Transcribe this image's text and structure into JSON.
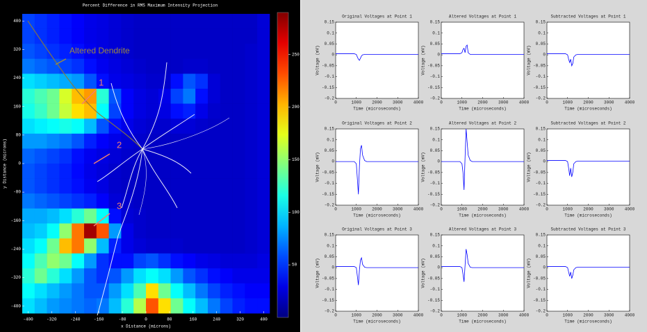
{
  "chart_data": [
    {
      "type": "heatmap",
      "title": "Percent Difference in RMS Maximum Intensity Projection",
      "xlabel": "x Distance (microns)",
      "ylabel": "y Distance (microns)",
      "xlim": [
        -420,
        420
      ],
      "ylim": [
        -420,
        420
      ],
      "xticks": [
        -400,
        -320,
        -240,
        -160,
        -80,
        0,
        80,
        160,
        240,
        320,
        400
      ],
      "yticks": [
        -400,
        -320,
        -240,
        -160,
        -80,
        0,
        80,
        160,
        240,
        320,
        400
      ],
      "colormap": "jet",
      "clim": [
        0,
        290
      ],
      "colorbar_ticks": [
        50,
        100,
        150,
        200,
        250
      ],
      "annotations": [
        "Altered Dendrite",
        "1",
        "2",
        "3"
      ],
      "x": [
        -399,
        -357,
        -315,
        -273,
        -231,
        -189,
        -147,
        -105,
        -63,
        -21,
        21,
        63,
        105,
        147,
        189,
        231,
        273,
        315,
        357,
        399
      ],
      "y": [
        399,
        357,
        315,
        273,
        231,
        189,
        147,
        105,
        63,
        21,
        -21,
        -63,
        -105,
        -147,
        -189,
        -231,
        -273,
        -315,
        -357,
        -399
      ],
      "values": [
        [
          55,
          50,
          45,
          40,
          35,
          30,
          28,
          25,
          22,
          20,
          20,
          20,
          20,
          20,
          20,
          20,
          20,
          20,
          20,
          25
        ],
        [
          55,
          50,
          45,
          40,
          35,
          30,
          28,
          25,
          22,
          20,
          20,
          20,
          20,
          20,
          20,
          20,
          20,
          20,
          20,
          25
        ],
        [
          60,
          55,
          50,
          45,
          40,
          32,
          28,
          25,
          22,
          20,
          20,
          20,
          20,
          20,
          20,
          20,
          20,
          20,
          22,
          25
        ],
        [
          70,
          65,
          60,
          55,
          50,
          40,
          32,
          28,
          25,
          22,
          20,
          20,
          20,
          22,
          22,
          20,
          20,
          20,
          22,
          25
        ],
        [
          100,
          95,
          90,
          85,
          80,
          60,
          40,
          30,
          28,
          25,
          22,
          22,
          40,
          60,
          50,
          25,
          20,
          20,
          22,
          25
        ],
        [
          120,
          130,
          140,
          170,
          200,
          210,
          120,
          60,
          35,
          28,
          25,
          30,
          55,
          70,
          40,
          25,
          20,
          20,
          22,
          25
        ],
        [
          115,
          125,
          140,
          165,
          190,
          200,
          110,
          55,
          35,
          28,
          25,
          28,
          40,
          45,
          30,
          22,
          20,
          20,
          22,
          25
        ],
        [
          100,
          105,
          110,
          115,
          110,
          90,
          60,
          40,
          30,
          25,
          22,
          22,
          25,
          25,
          22,
          20,
          20,
          20,
          22,
          25
        ],
        [
          80,
          80,
          75,
          70,
          60,
          45,
          35,
          30,
          25,
          22,
          20,
          20,
          20,
          20,
          20,
          20,
          20,
          20,
          22,
          25
        ],
        [
          65,
          60,
          55,
          50,
          40,
          32,
          28,
          25,
          22,
          20,
          20,
          20,
          20,
          20,
          20,
          20,
          20,
          20,
          22,
          25
        ],
        [
          60,
          55,
          50,
          45,
          38,
          30,
          26,
          22,
          20,
          20,
          20,
          20,
          20,
          20,
          20,
          20,
          20,
          20,
          22,
          25
        ],
        [
          60,
          55,
          50,
          45,
          40,
          32,
          28,
          22,
          20,
          20,
          20,
          20,
          20,
          20,
          20,
          20,
          20,
          20,
          22,
          25
        ],
        [
          70,
          65,
          60,
          55,
          50,
          45,
          35,
          25,
          22,
          20,
          20,
          20,
          20,
          20,
          20,
          20,
          20,
          20,
          22,
          25
        ],
        [
          85,
          85,
          90,
          100,
          120,
          140,
          110,
          40,
          25,
          22,
          20,
          20,
          20,
          20,
          20,
          20,
          20,
          20,
          22,
          25
        ],
        [
          90,
          95,
          110,
          150,
          220,
          280,
          230,
          80,
          30,
          22,
          20,
          20,
          20,
          20,
          20,
          20,
          20,
          20,
          22,
          25
        ],
        [
          100,
          110,
          140,
          200,
          220,
          150,
          90,
          45,
          30,
          25,
          22,
          22,
          22,
          20,
          20,
          20,
          20,
          20,
          22,
          25
        ],
        [
          110,
          130,
          150,
          140,
          110,
          80,
          50,
          40,
          40,
          55,
          60,
          50,
          40,
          35,
          30,
          28,
          25,
          25,
          25,
          28
        ],
        [
          120,
          140,
          120,
          100,
          80,
          60,
          50,
          60,
          80,
          100,
          110,
          100,
          80,
          60,
          50,
          40,
          35,
          30,
          30,
          30
        ],
        [
          110,
          100,
          90,
          80,
          70,
          60,
          60,
          80,
          100,
          130,
          190,
          140,
          110,
          90,
          70,
          55,
          45,
          40,
          35,
          35
        ],
        [
          100,
          90,
          80,
          75,
          70,
          65,
          70,
          90,
          120,
          160,
          230,
          190,
          140,
          110,
          90,
          70,
          55,
          45,
          40,
          40
        ]
      ]
    },
    {
      "type": "line",
      "title": "Original Voltages at Point 1",
      "xlabel": "Time (microseconds)",
      "ylabel": "Voltage (mV)",
      "color": "#0000ff",
      "x": [
        0,
        900,
        1000,
        1050,
        1100,
        1150,
        1200,
        1250,
        1300,
        1400,
        1500,
        4000
      ],
      "values": [
        0.005,
        0.005,
        0.002,
        -0.01,
        -0.02,
        -0.025,
        -0.015,
        -0.005,
        0,
        0.002,
        0.002,
        0.002
      ],
      "xlim": [
        0,
        4000
      ],
      "ylim": [
        -0.2,
        0.15
      ],
      "xticks": [
        0,
        1000,
        2000,
        3000,
        4000
      ],
      "yticks": [
        -0.2,
        -0.15,
        -0.1,
        -0.05,
        0,
        0.05,
        0.1,
        0.15
      ]
    },
    {
      "type": "line",
      "title": "Altered Voltages at Point 1",
      "xlabel": "Time (microseconds)",
      "ylabel": "Voltage (mV)",
      "color": "#0000ff",
      "x": [
        0,
        900,
        1000,
        1050,
        1100,
        1150,
        1200,
        1250,
        1300,
        1400,
        1500,
        4000
      ],
      "values": [
        0.005,
        0.005,
        0.01,
        0.025,
        0.03,
        0.01,
        0.04,
        0.045,
        0.01,
        0.002,
        0.002,
        0.002
      ],
      "xlim": [
        0,
        4000
      ],
      "ylim": [
        -0.2,
        0.15
      ],
      "xticks": [
        0,
        1000,
        2000,
        3000,
        4000
      ],
      "yticks": [
        -0.2,
        -0.15,
        -0.1,
        -0.05,
        0,
        0.05,
        0.1,
        0.15
      ]
    },
    {
      "type": "line",
      "title": "Subtracted Voltages at Point 1",
      "xlabel": "Time (microseconds)",
      "ylabel": "Voltage (mV)",
      "color": "#0000ff",
      "x": [
        0,
        900,
        1000,
        1050,
        1100,
        1150,
        1200,
        1250,
        1300,
        1400,
        1500,
        4000
      ],
      "values": [
        0.005,
        0.005,
        0,
        -0.02,
        -0.035,
        -0.02,
        -0.05,
        -0.04,
        -0.01,
        0,
        0.002,
        0.002
      ],
      "xlim": [
        0,
        4000
      ],
      "ylim": [
        -0.2,
        0.15
      ],
      "xticks": [
        0,
        1000,
        2000,
        3000,
        4000
      ],
      "yticks": [
        -0.2,
        -0.15,
        -0.1,
        -0.05,
        0,
        0.05,
        0.1,
        0.15
      ]
    },
    {
      "type": "line",
      "title": "Original Voltages at Point 2",
      "xlabel": "Time (microseconds)",
      "ylabel": "Voltage (mV)",
      "color": "#0000ff",
      "x": [
        0,
        900,
        1000,
        1050,
        1100,
        1150,
        1200,
        1250,
        1300,
        1400,
        1500,
        4000
      ],
      "values": [
        0,
        0,
        -0.01,
        -0.08,
        -0.15,
        -0.02,
        0.06,
        0.075,
        0.03,
        0.005,
        0,
        0
      ],
      "xlim": [
        0,
        4000
      ],
      "ylim": [
        -0.2,
        0.15
      ],
      "xticks": [
        0,
        1000,
        2000,
        3000,
        4000
      ],
      "yticks": [
        -0.2,
        -0.15,
        -0.1,
        -0.05,
        0,
        0.05,
        0.1,
        0.15
      ]
    },
    {
      "type": "line",
      "title": "Altered Voltages at Point 2",
      "xlabel": "Time (microseconds)",
      "ylabel": "Voltage (mV)",
      "color": "#0000ff",
      "x": [
        0,
        900,
        1000,
        1050,
        1100,
        1150,
        1200,
        1250,
        1300,
        1400,
        1500,
        4000
      ],
      "values": [
        0,
        0,
        -0.01,
        -0.05,
        -0.13,
        0.02,
        0.15,
        0.09,
        0.03,
        0.005,
        0,
        0
      ],
      "xlim": [
        0,
        4000
      ],
      "ylim": [
        -0.2,
        0.15
      ],
      "xticks": [
        0,
        1000,
        2000,
        3000,
        4000
      ],
      "yticks": [
        -0.2,
        -0.15,
        -0.1,
        -0.05,
        0,
        0.05,
        0.1,
        0.15
      ]
    },
    {
      "type": "line",
      "title": "Subtracted Voltages at Point 2",
      "xlabel": "Time (microseconds)",
      "ylabel": "Voltage (mV)",
      "color": "#0000ff",
      "x": [
        0,
        900,
        1000,
        1050,
        1100,
        1150,
        1200,
        1250,
        1300,
        1400,
        1500,
        4000
      ],
      "values": [
        0.005,
        0.005,
        0,
        -0.03,
        -0.065,
        -0.03,
        -0.07,
        -0.05,
        -0.01,
        0,
        0.002,
        0.002
      ],
      "xlim": [
        0,
        4000
      ],
      "ylim": [
        -0.2,
        0.15
      ],
      "xticks": [
        0,
        1000,
        2000,
        3000,
        4000
      ],
      "yticks": [
        -0.2,
        -0.15,
        -0.1,
        -0.05,
        0,
        0.05,
        0.1,
        0.15
      ]
    },
    {
      "type": "line",
      "title": "Original Voltages at Point 3",
      "xlabel": "Time (microseconds)",
      "ylabel": "Voltage (mV)",
      "color": "#0000ff",
      "x": [
        0,
        900,
        1000,
        1050,
        1100,
        1150,
        1200,
        1250,
        1300,
        1400,
        1500,
        4000
      ],
      "values": [
        0.005,
        0.005,
        0,
        -0.04,
        -0.08,
        -0.01,
        0.035,
        0.045,
        0.015,
        0.002,
        0,
        0
      ],
      "xlim": [
        0,
        4000
      ],
      "ylim": [
        -0.2,
        0.15
      ],
      "xticks": [
        0,
        1000,
        2000,
        3000,
        4000
      ],
      "yticks": [
        -0.2,
        -0.15,
        -0.1,
        -0.05,
        0,
        0.05,
        0.1,
        0.15
      ]
    },
    {
      "type": "line",
      "title": "Altered Voltages at Point 3",
      "xlabel": "Time (microseconds)",
      "ylabel": "Voltage (mV)",
      "color": "#0000ff",
      "x": [
        0,
        900,
        1000,
        1050,
        1100,
        1150,
        1200,
        1250,
        1300,
        1400,
        1500,
        4000
      ],
      "values": [
        0.005,
        0.005,
        0,
        -0.03,
        -0.065,
        0.01,
        0.085,
        0.06,
        0.02,
        0.002,
        0,
        0
      ],
      "xlim": [
        0,
        4000
      ],
      "ylim": [
        -0.2,
        0.15
      ],
      "xticks": [
        0,
        1000,
        2000,
        3000,
        4000
      ],
      "yticks": [
        -0.2,
        -0.15,
        -0.1,
        -0.05,
        0,
        0.05,
        0.1,
        0.15
      ]
    },
    {
      "type": "line",
      "title": "Subtracted Voltages at Point 3",
      "xlabel": "Time (microseconds)",
      "ylabel": "Voltage (mV)",
      "color": "#0000ff",
      "x": [
        0,
        900,
        1000,
        1050,
        1100,
        1150,
        1200,
        1250,
        1300,
        1400,
        1500,
        4000
      ],
      "values": [
        0.005,
        0.005,
        0,
        -0.02,
        -0.04,
        -0.02,
        -0.05,
        -0.035,
        -0.01,
        0,
        0.002,
        0.002
      ],
      "xlim": [
        0,
        4000
      ],
      "ylim": [
        -0.2,
        0.15
      ],
      "xticks": [
        0,
        1000,
        2000,
        3000,
        4000
      ],
      "yticks": [
        -0.2,
        -0.15,
        -0.1,
        -0.05,
        0,
        0.05,
        0.1,
        0.15
      ]
    }
  ]
}
